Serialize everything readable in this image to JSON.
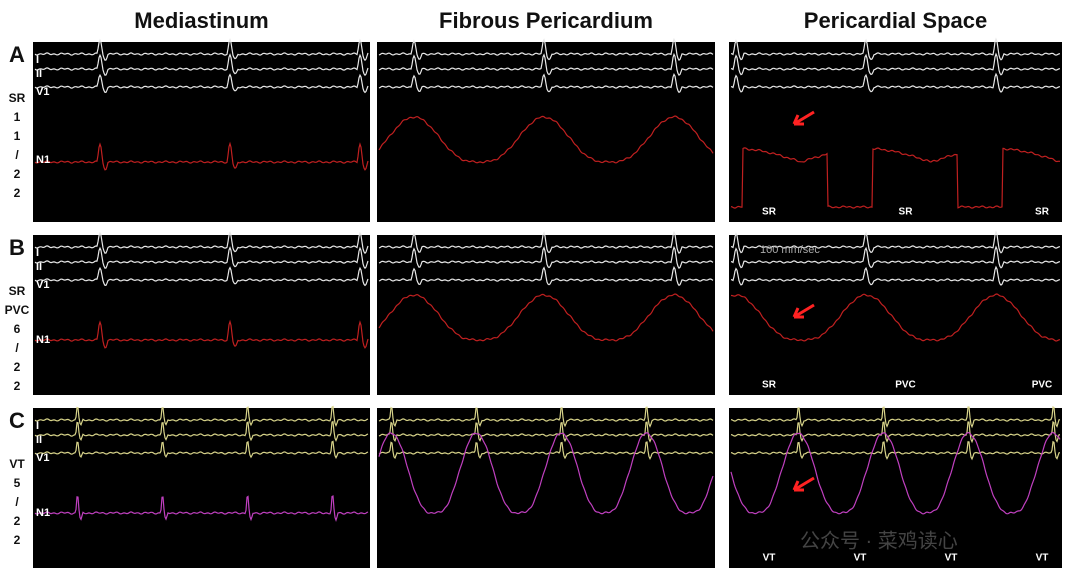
{
  "columns": [
    "Mediastinum",
    "Fibrous Pericardium",
    "Pericardial Space"
  ],
  "rows": [
    {
      "letter": "A",
      "side": [
        "SR",
        "1",
        "1",
        "/",
        "2",
        "2"
      ],
      "channels": [
        "I",
        "II",
        "V1",
        "N1"
      ],
      "space_marks": [
        "SR",
        "SR",
        "SR"
      ]
    },
    {
      "letter": "B",
      "side": [
        "SR",
        "PVC",
        "6",
        "/",
        "2",
        "2"
      ],
      "channels": [
        "I",
        "II",
        "V1",
        "N1"
      ],
      "space_marks": [
        "SR",
        "PVC",
        "PVC"
      ],
      "sweep": "100 mm/sec"
    },
    {
      "letter": "C",
      "side": [
        "VT",
        "5",
        "/",
        "2",
        "2"
      ],
      "channels": [
        "I",
        "II",
        "V1",
        "N1"
      ],
      "space_marks": [
        "VT",
        "VT",
        "VT",
        "VT"
      ]
    }
  ],
  "watermark": "公众号 · 菜鸡读心"
}
